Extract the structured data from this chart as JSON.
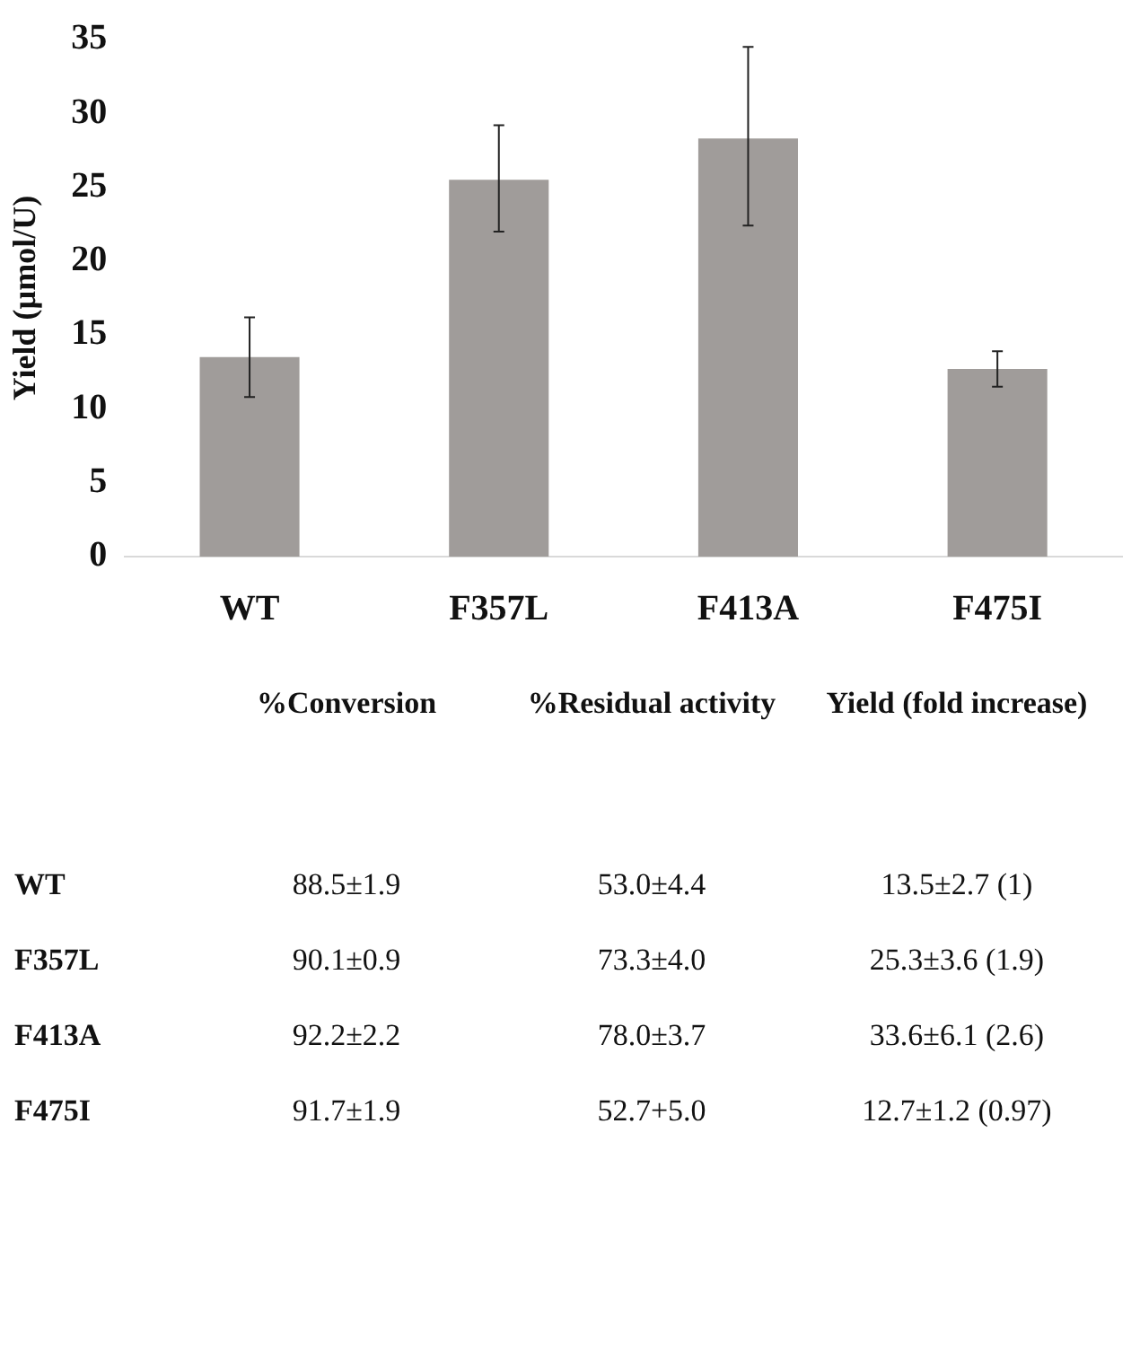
{
  "chart_data": {
    "type": "bar",
    "ylabel": "Yield (µmol/U)",
    "categories": [
      "WT",
      "F357L",
      "F413A",
      "F475I"
    ],
    "values": [
      13.5,
      25.5,
      28.3,
      12.7
    ],
    "errors": [
      [
        10.8,
        16.2
      ],
      [
        22.0,
        29.2
      ],
      [
        22.4,
        34.5
      ],
      [
        11.5,
        13.9
      ]
    ],
    "color": "#a09c9a",
    "ylim": [
      0,
      35
    ],
    "yticks": [
      0,
      5,
      10,
      15,
      20,
      25,
      30,
      35
    ],
    "grid": false,
    "annotations": [
      "%Conversion",
      "%Residual activity",
      "Yield (fold increase)",
      "WT",
      "88.5±1.9",
      "53.0±4.4",
      "13.5±2.7 (1)",
      "F357L",
      "90.1±0.9",
      "73.3±4.0",
      "25.3±3.6 (1.9)",
      "F413A",
      "92.2±2.2",
      "78.0±3.7",
      "33.6±6.1 (2.6)",
      "F475I",
      "91.7±1.9",
      "52.7+5.0",
      "12.7±1.2 (0.97)"
    ]
  }
}
